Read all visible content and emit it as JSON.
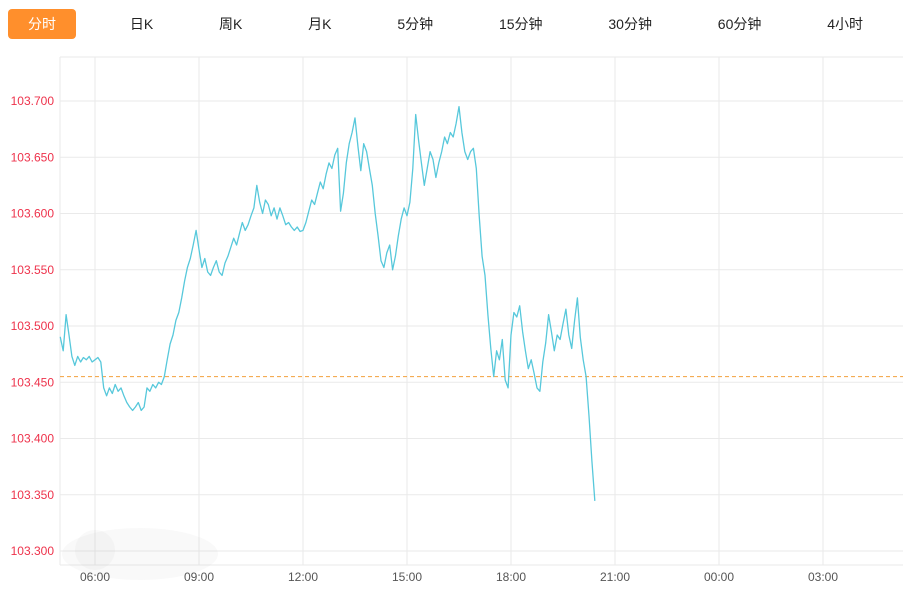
{
  "tabs": {
    "active_bg": "#ff8f2c",
    "items": [
      {
        "name": "tab-intraday",
        "label": "分时",
        "active": true
      },
      {
        "name": "tab-daily-k",
        "label": "日K",
        "active": false
      },
      {
        "name": "tab-weekly-k",
        "label": "周K",
        "active": false
      },
      {
        "name": "tab-monthly-k",
        "label": "月K",
        "active": false
      },
      {
        "name": "tab-5min",
        "label": "5分钟",
        "active": false
      },
      {
        "name": "tab-15min",
        "label": "15分钟",
        "active": false
      },
      {
        "name": "tab-30min",
        "label": "30分钟",
        "active": false
      },
      {
        "name": "tab-60min",
        "label": "60分钟",
        "active": false
      },
      {
        "name": "tab-4hour",
        "label": "4小时",
        "active": false
      }
    ]
  },
  "chart_data": {
    "type": "line",
    "title": "",
    "series_name": "intraday-price",
    "line_color": "#57c8db",
    "grid_color": "#eaeaea",
    "y_label_color": "#ee324b",
    "x_label_color": "#555555",
    "grid": true,
    "legend": "none",
    "ylim": [
      103.288,
      103.739
    ],
    "y_tick_labels": [
      "103.700",
      "103.650",
      "103.600",
      "103.550",
      "103.500",
      "103.450",
      "103.400",
      "103.350",
      "103.300"
    ],
    "x_ticks": [
      {
        "hour": 6,
        "label": "06:00"
      },
      {
        "hour": 9,
        "label": "09:00"
      },
      {
        "hour": 12,
        "label": "12:00"
      },
      {
        "hour": 15,
        "label": "15:00"
      },
      {
        "hour": 18,
        "label": "18:00"
      },
      {
        "hour": 21,
        "label": "21:00"
      },
      {
        "hour": 24,
        "label": "00:00"
      },
      {
        "hour": 27,
        "label": "03:00"
      }
    ],
    "reference_line": {
      "value": 103.455,
      "color": "#f2a13d",
      "style": "dashed"
    },
    "start_hour": 5.0,
    "interval_minutes": 5,
    "values": [
      103.49,
      103.478,
      103.51,
      103.492,
      103.473,
      103.465,
      103.473,
      103.468,
      103.472,
      103.47,
      103.473,
      103.468,
      103.47,
      103.472,
      103.468,
      103.445,
      103.438,
      103.445,
      103.44,
      103.448,
      103.442,
      103.445,
      103.438,
      103.432,
      103.428,
      103.425,
      103.428,
      103.432,
      103.425,
      103.428,
      103.445,
      103.442,
      103.448,
      103.445,
      103.45,
      103.448,
      103.455,
      103.47,
      103.484,
      103.492,
      103.505,
      103.512,
      103.525,
      103.54,
      103.552,
      103.56,
      103.572,
      103.585,
      103.568,
      103.552,
      103.56,
      103.548,
      103.545,
      103.552,
      103.558,
      103.548,
      103.545,
      103.556,
      103.562,
      103.57,
      103.578,
      103.572,
      103.582,
      103.592,
      103.585,
      103.59,
      103.598,
      103.605,
      103.625,
      103.61,
      103.6,
      103.612,
      103.608,
      103.598,
      103.605,
      103.595,
      103.605,
      103.598,
      103.59,
      103.592,
      103.588,
      103.585,
      103.588,
      103.584,
      103.585,
      103.592,
      103.602,
      103.612,
      103.608,
      103.618,
      103.628,
      103.622,
      103.635,
      103.645,
      103.64,
      103.652,
      103.658,
      103.602,
      103.618,
      103.645,
      103.662,
      103.672,
      103.685,
      103.66,
      103.638,
      103.662,
      103.655,
      103.64,
      103.625,
      103.6,
      103.58,
      103.558,
      103.552,
      103.565,
      103.572,
      103.55,
      103.562,
      103.58,
      103.595,
      103.605,
      103.598,
      103.61,
      103.64,
      103.688,
      103.665,
      103.645,
      103.625,
      103.64,
      103.655,
      103.648,
      103.632,
      103.645,
      103.655,
      103.668,
      103.662,
      103.672,
      103.668,
      103.68,
      103.695,
      103.672,
      103.655,
      103.648,
      103.655,
      103.658,
      103.64,
      103.598,
      103.562,
      103.545,
      103.51,
      103.48,
      103.455,
      103.478,
      103.47,
      103.488,
      103.452,
      103.445,
      103.492,
      103.512,
      103.508,
      103.518,
      103.495,
      103.478,
      103.462,
      103.47,
      103.458,
      103.445,
      103.442,
      103.468,
      103.485,
      103.51,
      103.495,
      103.478,
      103.492,
      103.488,
      103.502,
      103.515,
      103.492,
      103.48,
      103.505,
      103.525,
      103.49,
      103.47,
      103.455,
      103.42,
      103.38,
      103.345
    ]
  }
}
